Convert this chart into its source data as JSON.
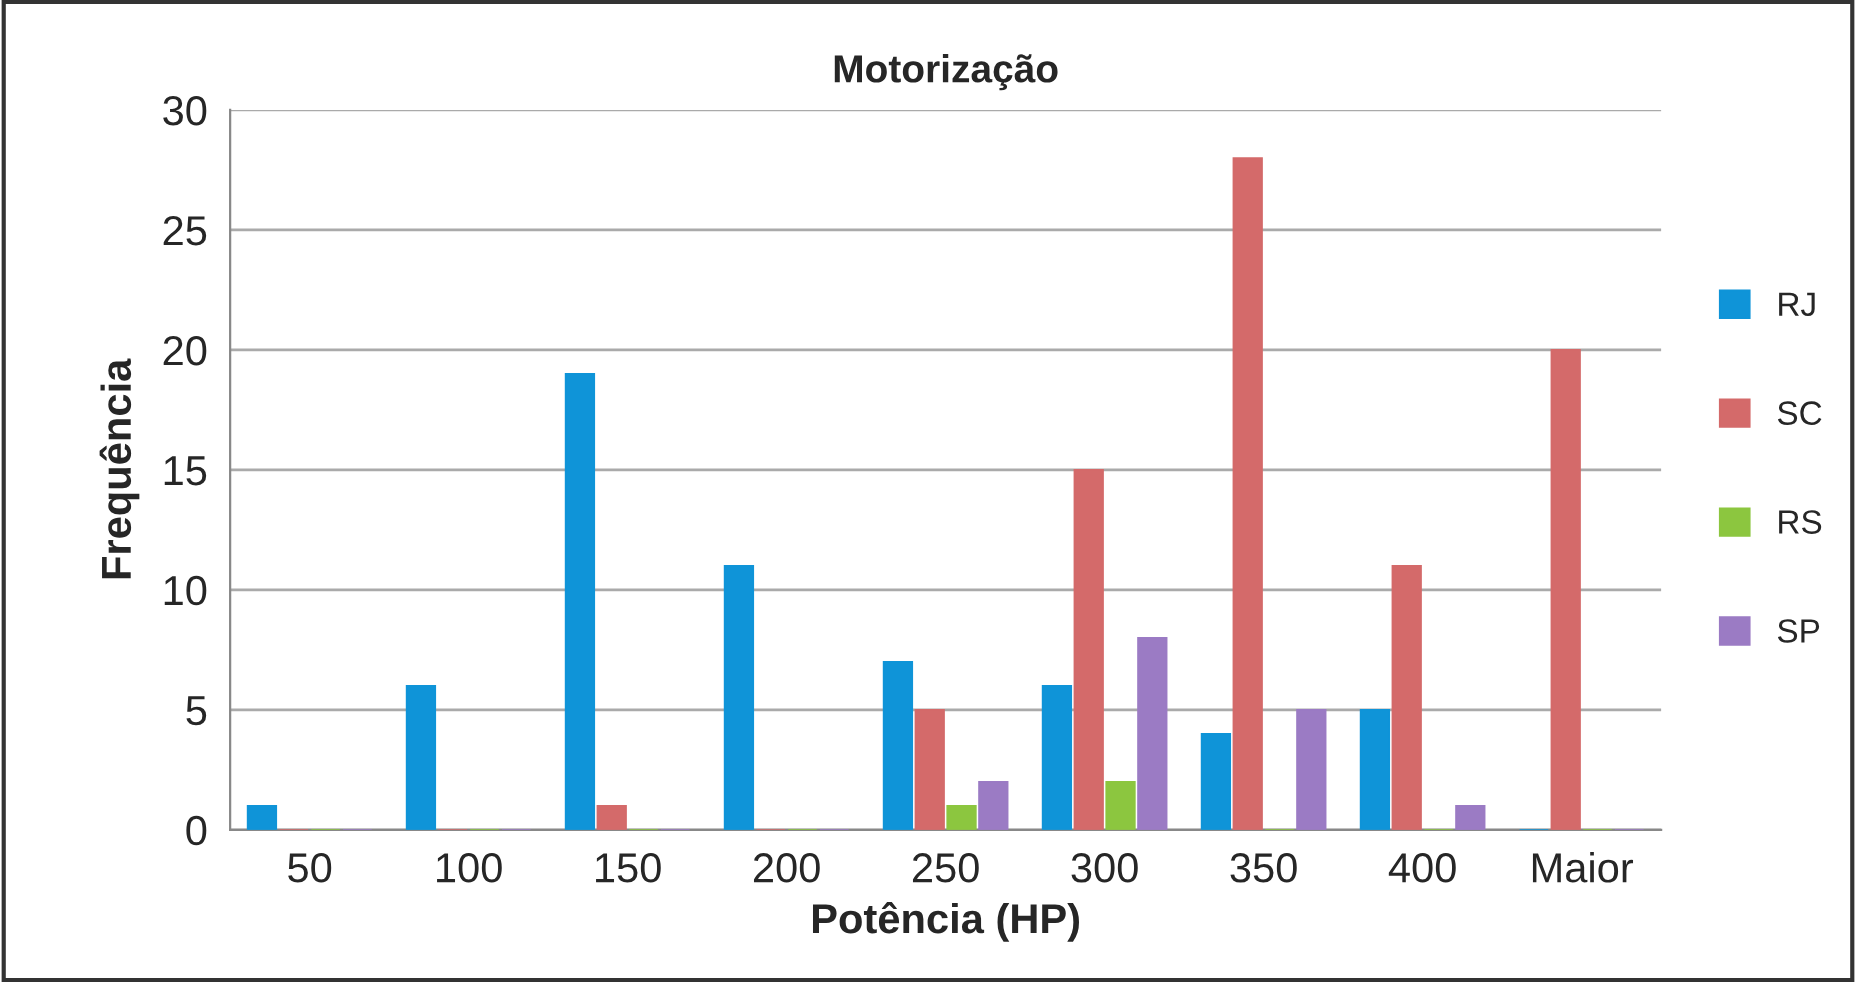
{
  "chart_data": {
    "type": "bar",
    "title": "Motorização",
    "xlabel": "Potência (HP)",
    "ylabel": "Frequência",
    "categories": [
      "50",
      "100",
      "150",
      "200",
      "250",
      "300",
      "350",
      "400",
      "Maior"
    ],
    "series": [
      {
        "name": "RJ",
        "color": "#0f94d8",
        "values": [
          1,
          6,
          19,
          11,
          7,
          6,
          4,
          5,
          0
        ]
      },
      {
        "name": "SC",
        "color": "#d46a6a",
        "values": [
          0,
          0,
          1,
          0,
          5,
          15,
          28,
          11,
          20
        ]
      },
      {
        "name": "RS",
        "color": "#8cc63f",
        "values": [
          0,
          0,
          0,
          0,
          1,
          2,
          0,
          0,
          0
        ]
      },
      {
        "name": "SP",
        "color": "#9b7bc4",
        "values": [
          0,
          0,
          0,
          0,
          2,
          8,
          5,
          1,
          0
        ]
      }
    ],
    "ylim": [
      0,
      30
    ],
    "yticks": [
      0,
      5,
      10,
      15,
      20,
      25,
      30
    ],
    "grid": "y",
    "legend": "right"
  }
}
